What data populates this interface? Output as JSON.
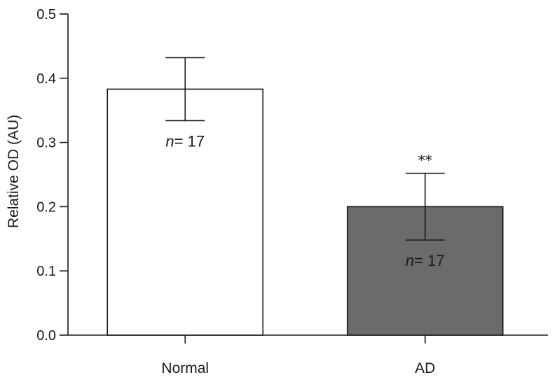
{
  "chart_data": {
    "type": "bar",
    "categories": [
      "Normal",
      "AD"
    ],
    "values": [
      0.383,
      0.2
    ],
    "errors": [
      0.049,
      0.052
    ],
    "bar_colors": [
      "#ffffff",
      "#6b6b6c"
    ],
    "ylabel": "Relative OD (AU)",
    "xlabel": "",
    "ylim": [
      0.0,
      0.5
    ],
    "yticks": [
      "0.0",
      "0.1",
      "0.2",
      "0.3",
      "0.4",
      "0.5"
    ],
    "annotations": [
      {
        "category": "Normal",
        "n_prefix": "n",
        "n_text": "= 17",
        "significance": ""
      },
      {
        "category": "AD",
        "n_prefix": "n",
        "n_text": "= 17",
        "significance": "**"
      }
    ]
  }
}
